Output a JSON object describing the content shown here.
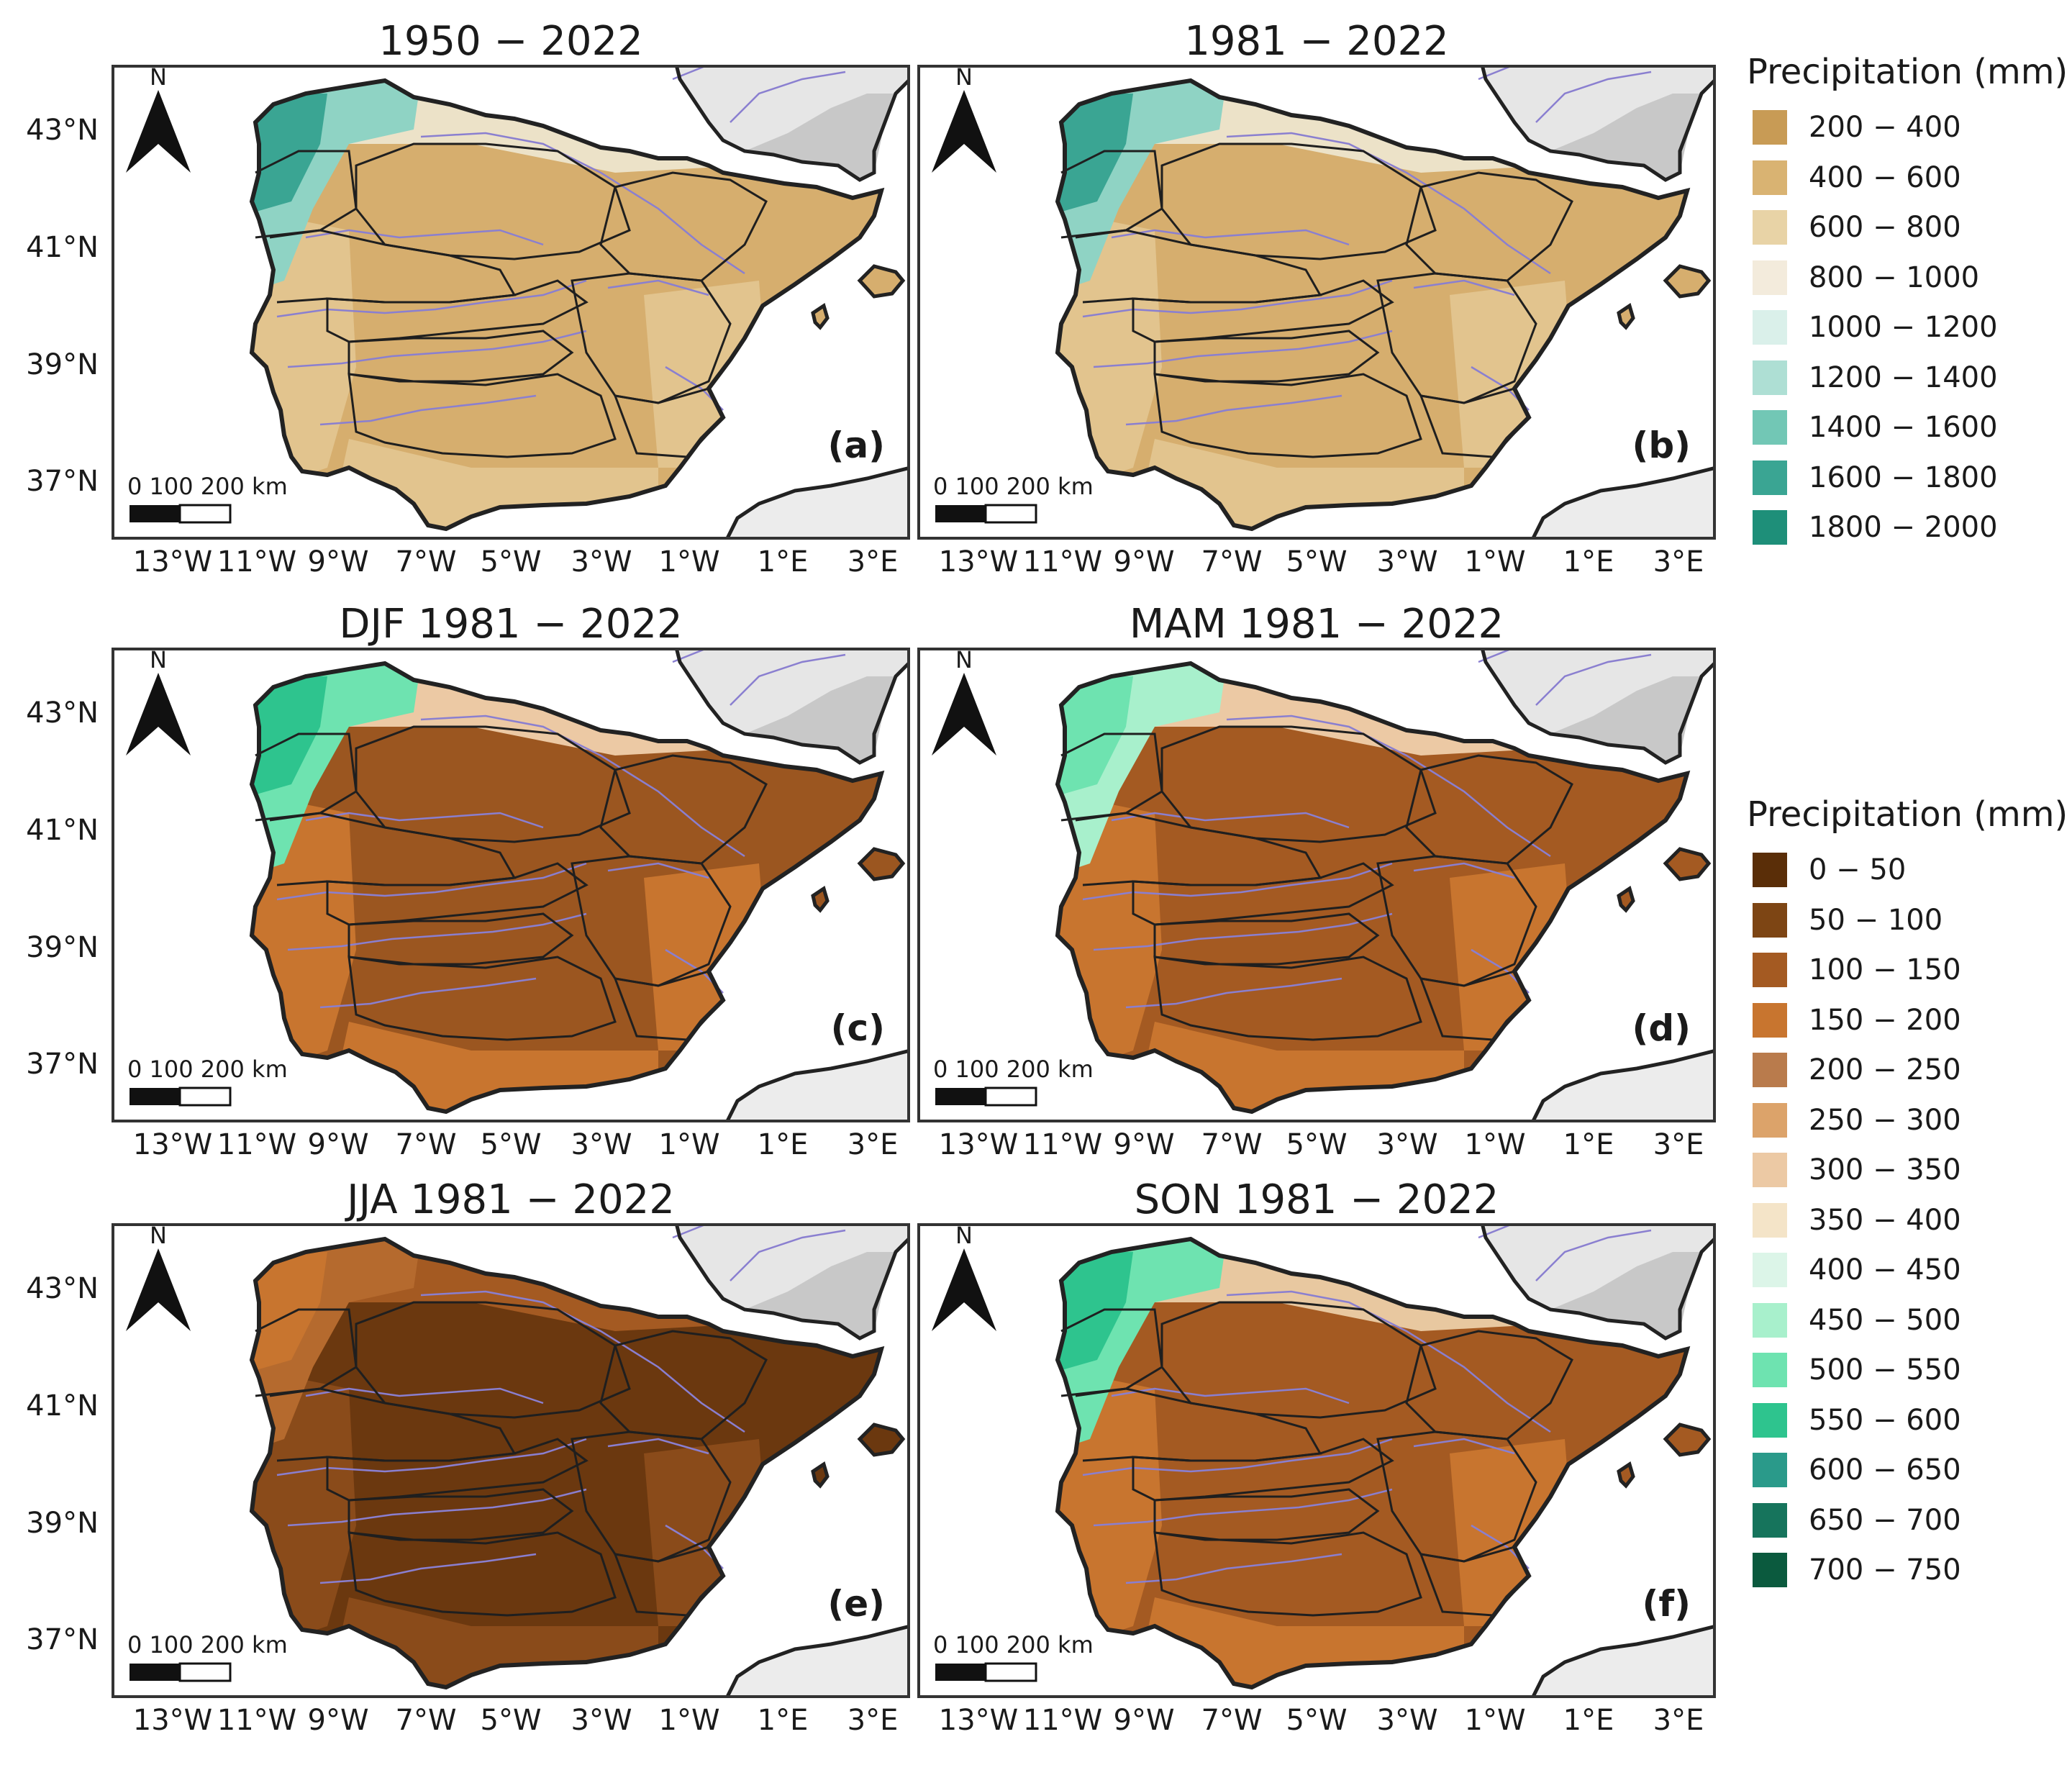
{
  "panels": [
    {
      "title": "1950 − 2022",
      "letter": "(a)",
      "palette": "annual"
    },
    {
      "title": "1981 − 2022",
      "letter": "(b)",
      "palette": "annual"
    },
    {
      "title": "DJF 1981 − 2022",
      "letter": "(c)",
      "palette": "djf"
    },
    {
      "title": "MAM 1981 − 2022",
      "letter": "(d)",
      "palette": "mam"
    },
    {
      "title": "JJA 1981 − 2022",
      "letter": "(e)",
      "palette": "jja"
    },
    {
      "title": "SON 1981 − 2022",
      "letter": "(f)",
      "palette": "son"
    }
  ],
  "lat_labels": [
    "43°N",
    "41°N",
    "39°N",
    "37°N"
  ],
  "lon_labels": [
    "13°W",
    "11°W",
    "9°W",
    "7°W",
    "5°W",
    "3°W",
    "1°W",
    "1°E",
    "3°E"
  ],
  "north_label": "N",
  "scale_label": "0   100 200 km",
  "legend_annual": {
    "title": "Precipitation (mm)",
    "items": [
      {
        "label": "200 − 400",
        "color": "#c89b55"
      },
      {
        "label": "400 − 600",
        "color": "#d9b372"
      },
      {
        "label": "600 − 800",
        "color": "#e8d3a6"
      },
      {
        "label": "800 − 1000",
        "color": "#f3ebdc"
      },
      {
        "label": "1000 − 1200",
        "color": "#daf0ea"
      },
      {
        "label": "1200 − 1400",
        "color": "#aedfd4"
      },
      {
        "label": "1400 − 1600",
        "color": "#72c7b5"
      },
      {
        "label": "1600 − 1800",
        "color": "#3aa593"
      },
      {
        "label": "1800 − 2000",
        "color": "#1e8f79"
      }
    ]
  },
  "legend_seasonal": {
    "title": "Precipitation (mm)",
    "items": [
      {
        "label": "0 − 50",
        "color": "#5a2e08"
      },
      {
        "label": "50 − 100",
        "color": "#7d4514"
      },
      {
        "label": "100 − 150",
        "color": "#a45a22"
      },
      {
        "label": "150 − 200",
        "color": "#c8752f"
      },
      {
        "label": "200 − 250",
        "color": "#b97b4c"
      },
      {
        "label": "250 − 300",
        "color": "#dca36a"
      },
      {
        "label": "300 − 350",
        "color": "#ecc9a4"
      },
      {
        "label": "350 − 400",
        "color": "#f4e4c8"
      },
      {
        "label": "400 − 450",
        "color": "#dcf5e8"
      },
      {
        "label": "450 − 500",
        "color": "#a8f0cc"
      },
      {
        "label": "500 − 550",
        "color": "#6ee3b0"
      },
      {
        "label": "550 − 600",
        "color": "#2ec48e"
      },
      {
        "label": "600 − 650",
        "color": "#2a9a8a"
      },
      {
        "label": "650 − 700",
        "color": "#16745c"
      },
      {
        "label": "700 − 750",
        "color": "#0b5a3e"
      }
    ]
  },
  "colors": {
    "frame": "#333333",
    "sea": "#ffffff",
    "relief": "#d8d8d8",
    "rivers": "#8a7fd0",
    "basins": "#1f1f1f",
    "coast": "#222222"
  }
}
